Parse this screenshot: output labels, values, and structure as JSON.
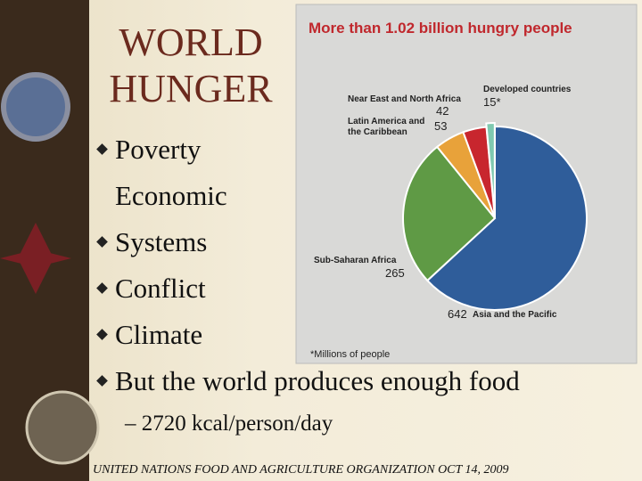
{
  "slide": {
    "title": "WORLD HUNGER",
    "bullets": [
      "Poverty",
      "Economic Systems",
      "Conflict",
      "Climate",
      "But the world produces enough food"
    ],
    "sub_bullets": [
      "2720 kcal/person/day"
    ],
    "footer": "UNITED NATIONS FOOD AND AGRICULTURE ORGANIZATION OCT 14, 2009"
  },
  "chart_data": {
    "type": "pie",
    "title": "More than 1.02 billion hungry people",
    "categories": [
      "Asia and the Pacific",
      "Sub-Saharan Africa",
      "Latin America and the Caribbean",
      "Near East and North Africa",
      "Developed countries"
    ],
    "values": [
      642,
      265,
      53,
      42,
      15
    ],
    "value_labels": [
      "642",
      "265",
      "53",
      "42",
      "15*"
    ],
    "colors": [
      "#2f5d9a",
      "#5f9a45",
      "#e8a23a",
      "#c8262e",
      "#7fc9b0"
    ],
    "note": "*Millions of people"
  }
}
